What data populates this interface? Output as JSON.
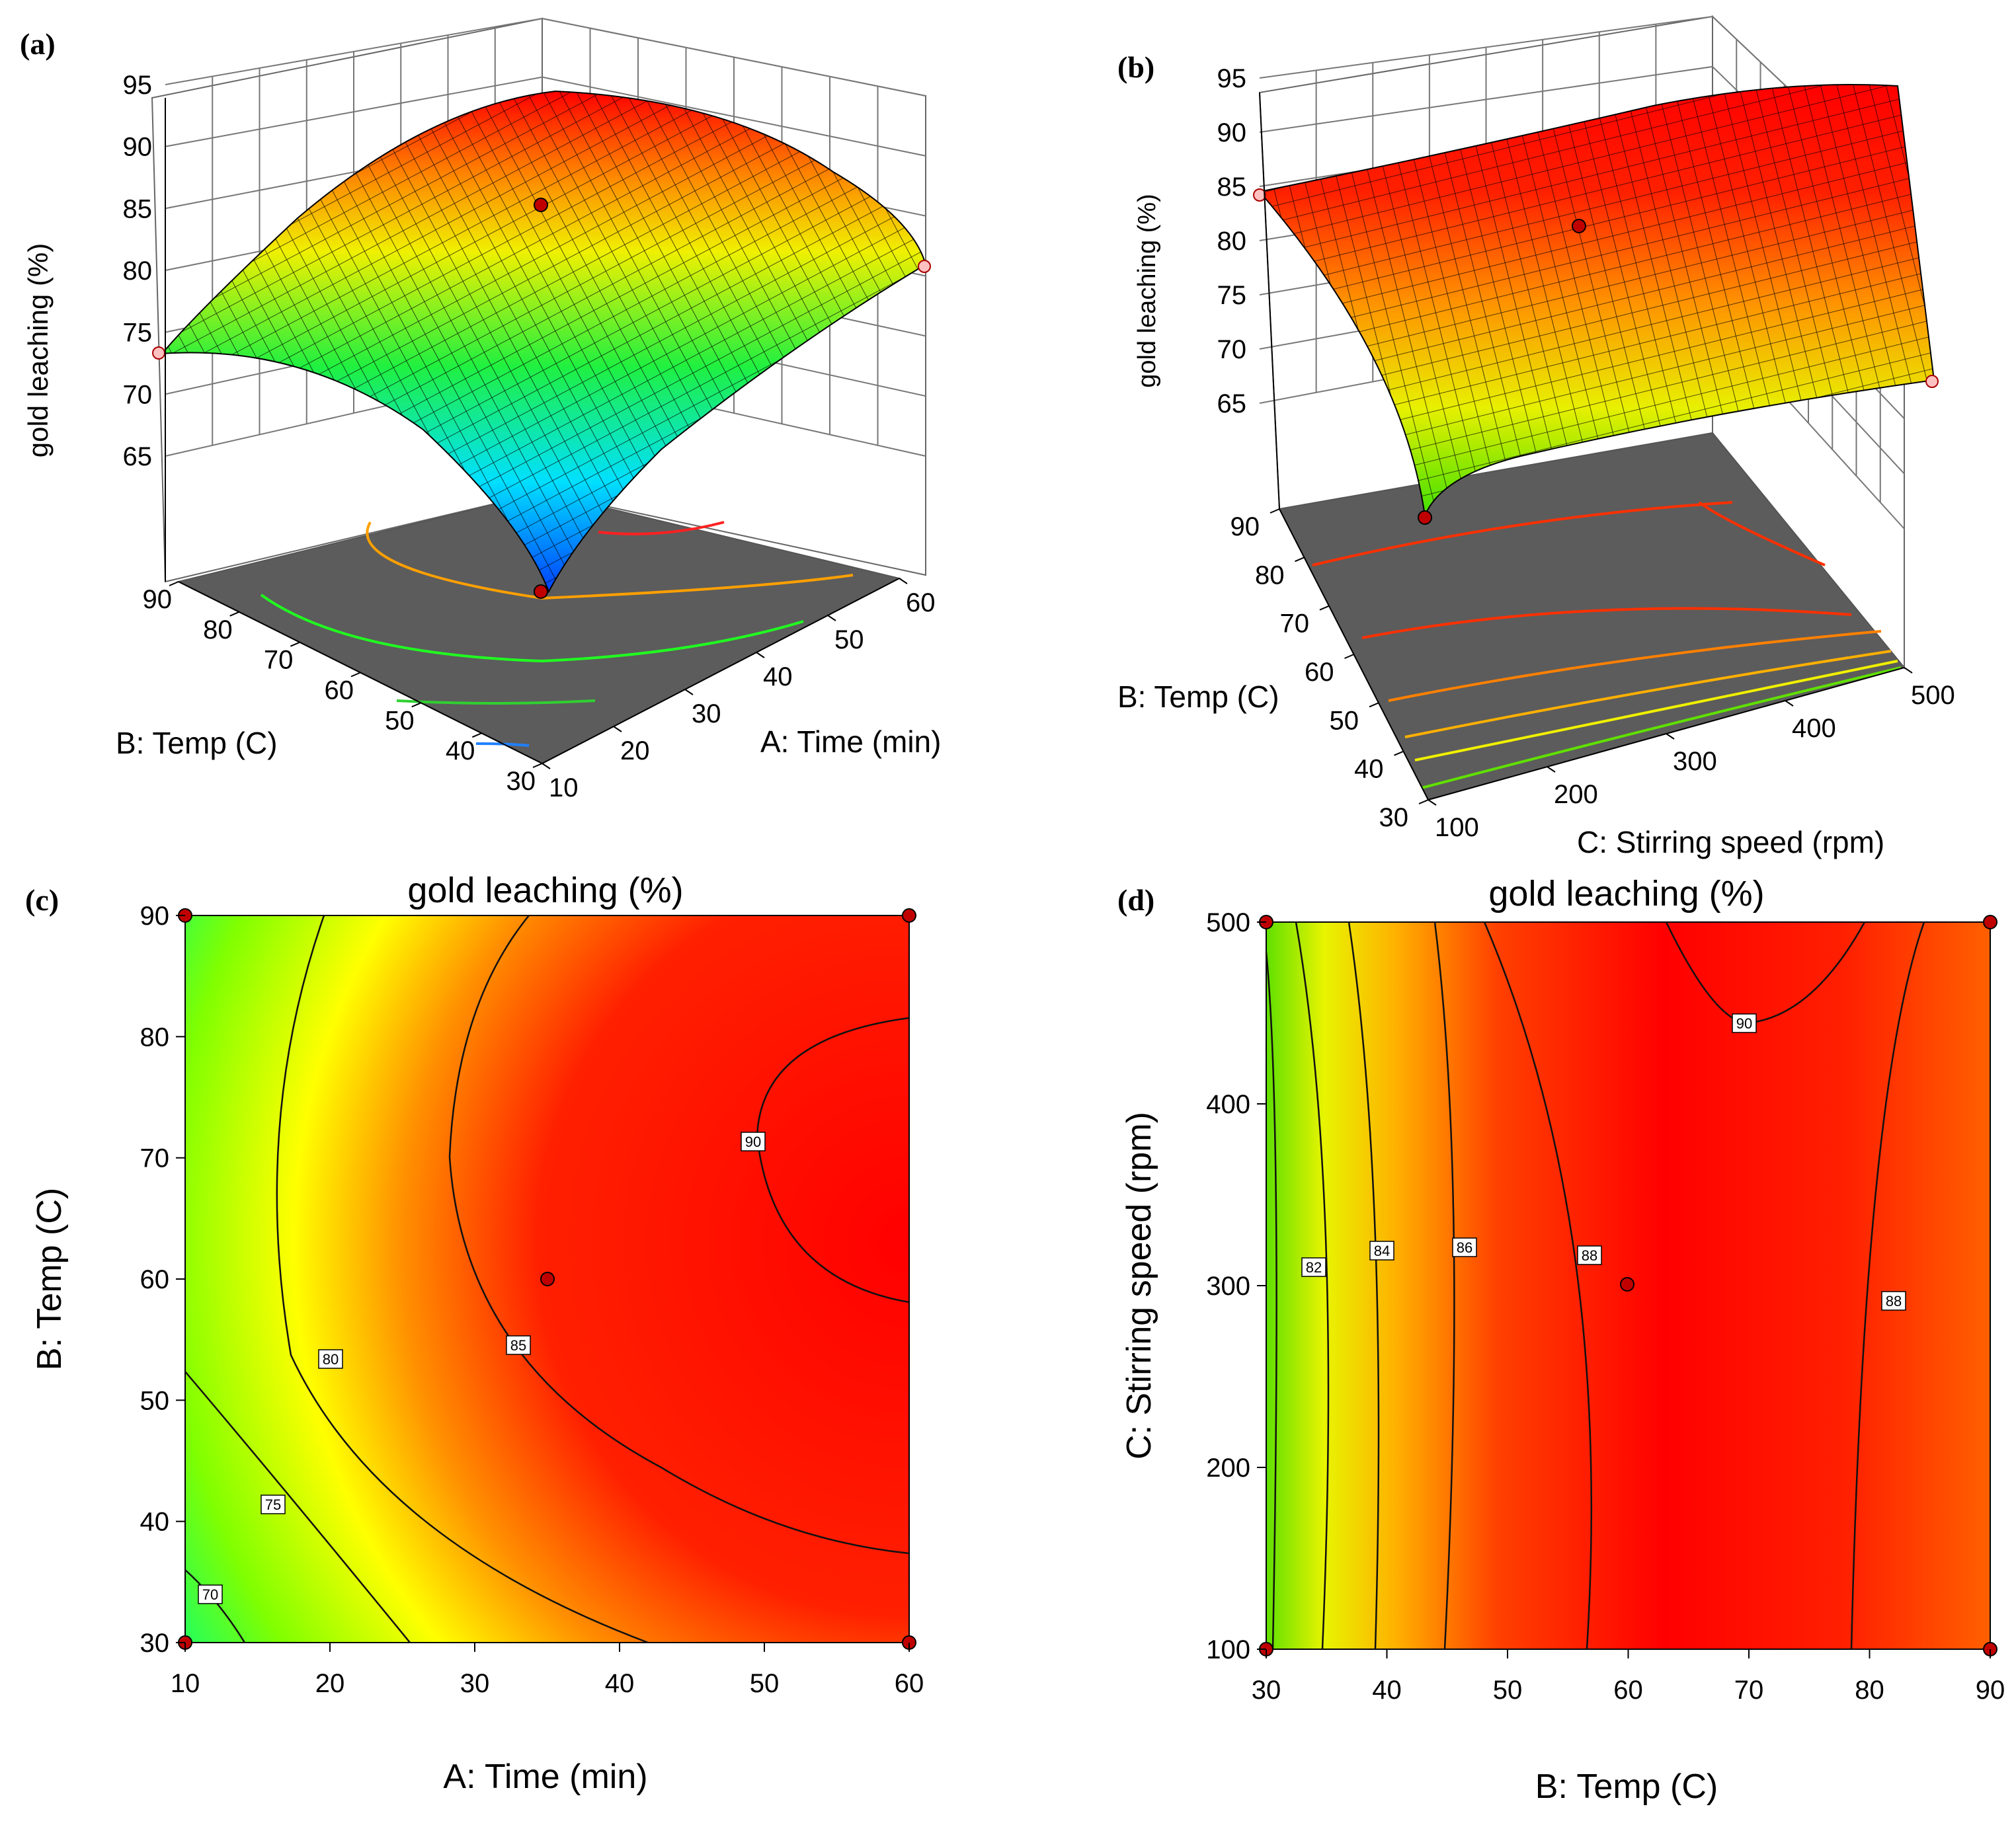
{
  "chart_data": [
    {
      "panel": "(a)",
      "type": "surface",
      "zlabel": "gold leaching (%)",
      "xlabel": "A: Time (min)",
      "ylabel": "B: Temp (C)",
      "xticks": [
        10,
        20,
        30,
        40,
        50,
        60
      ],
      "yticks": [
        30,
        40,
        50,
        60,
        70,
        80,
        90
      ],
      "zticks": [
        65,
        70,
        75,
        80,
        85,
        90,
        95
      ],
      "xlim": [
        10,
        60
      ],
      "ylim": [
        30,
        90
      ],
      "zlim": [
        65,
        95
      ],
      "colors": [
        "#0040ff",
        "#00e0ff",
        "#00ff40",
        "#ffff00",
        "#ff8000",
        "#ff0000"
      ]
    },
    {
      "panel": "(b)",
      "type": "surface",
      "zlabel": "gold leaching (%)",
      "xlabel": "C: Stirring speed (rpm)",
      "ylabel": "B: Temp (C)",
      "xticks": [
        100,
        200,
        300,
        400,
        500
      ],
      "yticks": [
        30,
        40,
        50,
        60,
        70,
        80,
        90
      ],
      "zticks": [
        65,
        70,
        75,
        80,
        85,
        90,
        95
      ],
      "xlim": [
        100,
        500
      ],
      "ylim": [
        30,
        90
      ],
      "zlim": [
        65,
        95
      ]
    },
    {
      "panel": "(c)",
      "type": "contour",
      "title": "gold leaching (%)",
      "xlabel": "A: Time (min)",
      "ylabel": "B: Temp (C)",
      "xticks": [
        10,
        20,
        30,
        40,
        50,
        60
      ],
      "yticks": [
        30,
        40,
        50,
        60,
        70,
        80,
        90
      ],
      "xlim": [
        10,
        60
      ],
      "ylim": [
        30,
        90
      ],
      "contour_levels": [
        70,
        75,
        80,
        85,
        90
      ],
      "contour_label_text": [
        "70",
        "75",
        "80",
        "85",
        "90"
      ],
      "center_point": {
        "x": 35,
        "y": 60
      },
      "design_points": [
        {
          "x": 10,
          "y": 30
        },
        {
          "x": 60,
          "y": 30
        },
        {
          "x": 10,
          "y": 90
        },
        {
          "x": 60,
          "y": 90
        }
      ]
    },
    {
      "panel": "(d)",
      "type": "contour",
      "title": "gold leaching (%)",
      "xlabel": "B: Temp (C)",
      "ylabel": "C: Stirring speed (rpm)",
      "xticks": [
        30,
        40,
        50,
        60,
        70,
        80,
        90
      ],
      "yticks": [
        100,
        200,
        300,
        400,
        500
      ],
      "xlim": [
        30,
        90
      ],
      "ylim": [
        100,
        500
      ],
      "contour_levels": [
        82,
        84,
        86,
        88,
        90
      ],
      "contour_label_text": [
        "82",
        "84",
        "86",
        "88",
        "90",
        "88"
      ],
      "center_point": {
        "x": 60,
        "y": 300
      },
      "design_points": [
        {
          "x": 30,
          "y": 100
        },
        {
          "x": 90,
          "y": 100
        },
        {
          "x": 30,
          "y": 500
        },
        {
          "x": 90,
          "y": 500
        }
      ]
    }
  ]
}
